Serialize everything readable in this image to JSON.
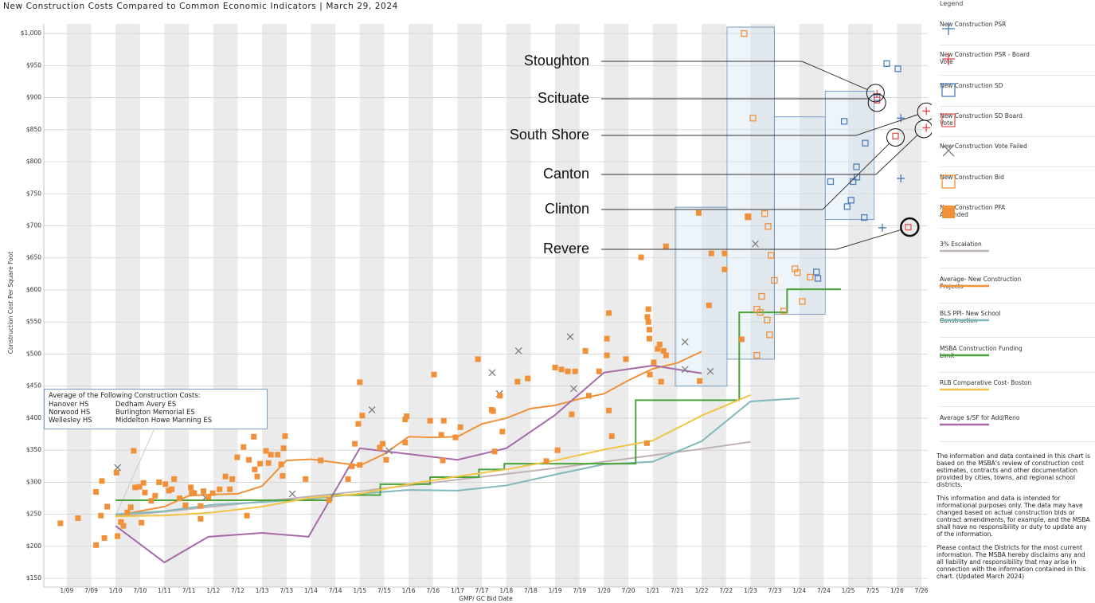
{
  "chart_data": {
    "type": "scatter",
    "title": "New Construction Costs Compared to Common Economic Indicators | March 29, 2024",
    "x_label": "GMP/ GC Bid Date",
    "y_label": "Construction Cost Per Square Foot",
    "xlim": [
      2008.53,
      2026.63
    ],
    "ylim": [
      136.5,
      1015
    ],
    "xticks": [
      {
        "value": 2009,
        "label": "1/09"
      },
      {
        "value": 2009.5,
        "label": "7/09"
      },
      {
        "value": 2010,
        "label": "1/10"
      },
      {
        "value": 2010.5,
        "label": "7/10"
      },
      {
        "value": 2011,
        "label": "1/11"
      },
      {
        "value": 2011.5,
        "label": "7/11"
      },
      {
        "value": 2012,
        "label": "1/12"
      },
      {
        "value": 2012.5,
        "label": "7/12"
      },
      {
        "value": 2013,
        "label": "1/13"
      },
      {
        "value": 2013.5,
        "label": "7/13"
      },
      {
        "value": 2014,
        "label": "1/14"
      },
      {
        "value": 2014.5,
        "label": "7/14"
      },
      {
        "value": 2015,
        "label": "1/15"
      },
      {
        "value": 2015.5,
        "label": "7/15"
      },
      {
        "value": 2016,
        "label": "1/16"
      },
      {
        "value": 2016.5,
        "label": "7/16"
      },
      {
        "value": 2017,
        "label": "1/17"
      },
      {
        "value": 2017.5,
        "label": "7/17"
      },
      {
        "value": 2018,
        "label": "1/18"
      },
      {
        "value": 2018.5,
        "label": "7/18"
      },
      {
        "value": 2019,
        "label": "1/19"
      },
      {
        "value": 2019.5,
        "label": "7/19"
      },
      {
        "value": 2020,
        "label": "1/20"
      },
      {
        "value": 2020.5,
        "label": "7/20"
      },
      {
        "value": 2021,
        "label": "1/21"
      },
      {
        "value": 2021.5,
        "label": "7/21"
      },
      {
        "value": 2022,
        "label": "1/22"
      },
      {
        "value": 2022.5,
        "label": "7/22"
      },
      {
        "value": 2023,
        "label": "1/23"
      },
      {
        "value": 2023.5,
        "label": "7/23"
      },
      {
        "value": 2024,
        "label": "1/24"
      },
      {
        "value": 2024.5,
        "label": "7/24"
      },
      {
        "value": 2025,
        "label": "1/25"
      },
      {
        "value": 2025.5,
        "label": "7/25"
      },
      {
        "value": 2026,
        "label": "1/26"
      },
      {
        "value": 2026.5,
        "label": "7/26"
      }
    ],
    "yticks": [
      {
        "value": 150,
        "label": "$150"
      },
      {
        "value": 200,
        "label": "$200"
      },
      {
        "value": 250,
        "label": "$250"
      },
      {
        "value": 300,
        "label": "$300"
      },
      {
        "value": 350,
        "label": "$350"
      },
      {
        "value": 400,
        "label": "$400"
      },
      {
        "value": 450,
        "label": "$450"
      },
      {
        "value": 500,
        "label": "$500"
      },
      {
        "value": 550,
        "label": "$550"
      },
      {
        "value": 600,
        "label": "$600"
      },
      {
        "value": 650,
        "label": "$650"
      },
      {
        "value": 700,
        "label": "$700"
      },
      {
        "value": 750,
        "label": "$750"
      },
      {
        "value": 800,
        "label": "$800"
      },
      {
        "value": 850,
        "label": "$850"
      },
      {
        "value": 900,
        "label": "$900"
      },
      {
        "value": 950,
        "label": "$950"
      },
      {
        "value": 1000,
        "label": "$1,000"
      }
    ],
    "grid": true,
    "legend_title": "Legend",
    "series": [
      {
        "name": "New Construction PSR",
        "marker": "plus",
        "color": "#3f78b5",
        "x": [
          2026.08,
          2026.08,
          2025.7
        ],
        "values": [
          868,
          774,
          697
        ]
      },
      {
        "name": "New Construction PSR - Board Vote",
        "marker": "plus",
        "color": "#e8434a",
        "x": [
          2025.59,
          2026.6,
          2026.6
        ],
        "values": [
          906,
          879,
          853
        ]
      },
      {
        "name": "New Construction SD",
        "marker": "square",
        "color": "#4f7fb8",
        "x": [
          2025.79,
          2026.02,
          2025.59,
          2024.92,
          2025.35,
          2025.17,
          2025.18,
          2025.1,
          2024.64,
          2025.06,
          2024.98,
          2025.33,
          2024.35,
          2024.38
        ],
        "values": [
          953,
          945,
          900,
          863,
          829,
          792,
          776,
          769,
          769,
          740,
          730,
          713,
          628,
          618
        ]
      },
      {
        "name": "New Construction SD Board Vote",
        "marker": "square",
        "color": "#e05a5f",
        "x": [
          2025.59,
          2025.97,
          2026.23
        ],
        "values": [
          896,
          840,
          698
        ]
      },
      {
        "name": "New Construction Vote Failed",
        "marker": "cross",
        "color": "#7d7d7d",
        "x": [
          2010.04,
          2011.84,
          2013.62,
          2015.25,
          2015.6,
          2017.71,
          2017.86,
          2018.25,
          2019.31,
          2019.38,
          2021.66,
          2021.66,
          2022.18,
          2023.1
        ],
        "values": [
          323,
          276,
          282,
          413,
          349,
          471,
          438,
          505,
          527,
          446,
          519,
          476,
          473,
          672
        ]
      },
      {
        "name": "New Construction Bid",
        "marker": "square",
        "color": "#f0913a",
        "x": [
          2022.87,
          2023.05,
          2022.95,
          2023.29,
          2023.36,
          2023.42,
          2023.49,
          2023.23,
          2023.2,
          2023.13,
          2023.34,
          2023.39,
          2023.13,
          2023.68,
          2023.91,
          2023.96,
          2024.22,
          2024.06
        ],
        "values": [
          1000,
          868,
          714,
          719,
          699,
          654,
          615,
          590,
          565,
          570,
          553,
          530,
          498,
          567,
          633,
          627,
          620,
          582
        ]
      },
      {
        "name": "New Construction PFA Amended",
        "marker": "filled-square",
        "color": "#f0913a",
        "x": [
          2008.87,
          2009.23,
          2009.6,
          2009.6,
          2009.72,
          2009.7,
          2009.77,
          2009.83,
          2010.04,
          2010.02,
          2010.11,
          2010.16,
          2010.24,
          2010.31,
          2010.37,
          2010.4,
          2010.49,
          2010.53,
          2010.57,
          2010.6,
          2010.73,
          2010.81,
          2010.89,
          2011.02,
          2011.09,
          2011.15,
          2011.2,
          2011.31,
          2011.43,
          2011.54,
          2011.56,
          2011.61,
          2011.74,
          2011.74,
          2011.8,
          2011.9,
          2011.99,
          2012.13,
          2012.25,
          2012.34,
          2012.39,
          2012.49,
          2012.62,
          2012.73,
          2012.83,
          2012.85,
          2012.9,
          2012.96,
          2013.08,
          2013.13,
          2013.18,
          2013.32,
          2013.39,
          2013.42,
          2013.44,
          2013.47,
          2012.69,
          2013.89,
          2014.2,
          2014.37,
          2014.76,
          2014.84,
          2014.9,
          2014.97,
          2015.05,
          2015.0,
          2015.0,
          2015.41,
          2015.47,
          2015.54,
          2015.93,
          2015.93,
          2015.96,
          2016.52,
          2016.44,
          2016.72,
          2016.67,
          2016.7,
          2016.96,
          2017.06,
          2017.42,
          2017.7,
          2017.73,
          2017.76,
          2017.87,
          2017.92,
          2018.23,
          2018.44,
          2018.82,
          2019.0,
          2019.05,
          2019.13,
          2019.26,
          2019.34,
          2019.41,
          2019.62,
          2019.69,
          2019.9,
          2020.06,
          2020.06,
          2020.1,
          2020.1,
          2020.16,
          2020.45,
          2020.76,
          2020.94,
          2020.88,
          2020.89,
          2020.91,
          2020.91,
          2020.93,
          2020.93,
          2021.02,
          2021.1,
          2021.17,
          2021.22,
          2021.27,
          2021.14,
          2021.27,
          2021.94,
          2021.96,
          2022.15,
          2022.2,
          2022.47,
          2022.47,
          2022.82,
          2022.96
        ],
        "values": [
          236,
          244,
          202,
          285,
          302,
          248,
          213,
          262,
          216,
          315,
          238,
          232,
          253,
          261,
          349,
          292,
          293,
          237,
          299,
          284,
          271,
          279,
          300,
          297,
          287,
          289,
          305,
          275,
          264,
          292,
          284,
          283,
          263,
          243,
          286,
          277,
          283,
          289,
          309,
          289,
          305,
          339,
          355,
          335,
          371,
          320,
          309,
          329,
          349,
          330,
          343,
          343,
          328,
          310,
          353,
          372,
          248,
          305,
          334,
          272,
          305,
          325,
          360,
          391,
          404,
          456,
          327,
          354,
          360,
          335,
          362,
          398,
          403,
          468,
          396,
          396,
          374,
          334,
          370,
          386,
          492,
          413,
          411,
          348,
          435,
          379,
          457,
          462,
          333,
          479,
          350,
          476,
          473,
          406,
          473,
          505,
          435,
          473,
          498,
          524,
          564,
          412,
          372,
          492,
          651,
          468,
          361,
          558,
          570,
          550,
          538,
          524,
          487,
          508,
          457,
          505,
          498,
          515,
          668,
          720,
          458,
          576,
          657,
          632,
          657,
          523,
          715
        ]
      },
      {
        "name": "3% Escalation",
        "marker": "line",
        "color": "#bfb3b1",
        "x": [
          2010,
          2011,
          2012,
          2013,
          2014,
          2015,
          2016,
          2017,
          2018,
          2019,
          2020,
          2021,
          2022,
          2023
        ],
        "values": [
          247,
          254,
          262,
          270,
          278,
          286,
          295,
          304,
          313,
          322,
          332,
          342,
          352,
          363
        ]
      },
      {
        "name": "Average- New Construction Projects",
        "marker": "line",
        "color": "#f0913a",
        "x": [
          2010,
          2011,
          2011.5,
          2012,
          2012.5,
          2013,
          2013.5,
          2014,
          2014.5,
          2015,
          2015.5,
          2016,
          2016.5,
          2017,
          2017.5,
          2018,
          2018.5,
          2019,
          2019.5,
          2020,
          2020.5,
          2021,
          2021.5,
          2022
        ],
        "values": [
          248,
          262,
          279,
          281,
          282,
          294,
          334,
          336,
          331,
          326,
          344,
          371,
          370,
          371,
          391,
          400,
          415,
          420,
          430,
          438,
          459,
          477,
          486,
          504
        ]
      },
      {
        "name": "BLS PPI- New School Construction",
        "marker": "line",
        "color": "#7fb9bc",
        "x": [
          2010,
          2011,
          2012,
          2013,
          2014,
          2015,
          2016,
          2017,
          2018,
          2019,
          2020,
          2021,
          2022,
          2023,
          2024
        ],
        "values": [
          250,
          255,
          265,
          269,
          274,
          282,
          288,
          287,
          295,
          312,
          328,
          332,
          364,
          426,
          431
        ]
      },
      {
        "name": "MSBA Construction Funding Limit",
        "marker": "line",
        "color": "#4aa23a",
        "x": [
          2010,
          2014.42,
          2014.42,
          2015.42,
          2015.42,
          2016.44,
          2016.44,
          2017.44,
          2017.44,
          2017.96,
          2017.96,
          2020.65,
          2020.65,
          2022.77,
          2022.77,
          2023.75,
          2023.75,
          2024.85
        ],
        "values": [
          272,
          272,
          280,
          280,
          297,
          297,
          308,
          308,
          320,
          320,
          329,
          329,
          428,
          428,
          565,
          565,
          601,
          601
        ]
      },
      {
        "name": "RLB Comparative Cost- Boston",
        "marker": "line",
        "color": "#f3c443",
        "x": [
          2010,
          2011,
          2012,
          2013,
          2014,
          2015,
          2016,
          2017,
          2018,
          2019,
          2020,
          2021,
          2022,
          2023
        ],
        "values": [
          247,
          248,
          253,
          262,
          276,
          282,
          297,
          309,
          320,
          334,
          351,
          365,
          404,
          436
        ]
      },
      {
        "name": "Average $/SF for Add/Reno",
        "marker": "line",
        "color": "#a76aa9",
        "x": [
          2010,
          2011,
          2011.9,
          2013,
          2013.95,
          2015,
          2016,
          2017,
          2018,
          2019,
          2020,
          2021,
          2022
        ],
        "values": [
          232,
          175,
          215,
          221,
          215,
          353,
          344,
          335,
          353,
          405,
          471,
          482,
          470
        ]
      }
    ],
    "highlight_boxes": [
      {
        "x0": 2021.46,
        "x1": 2022.52,
        "y0": 450,
        "y1": 729
      },
      {
        "x0": 2022.52,
        "x1": 2023.49,
        "y0": 492,
        "y1": 1010
      },
      {
        "x0": 2023.49,
        "x1": 2024.53,
        "y0": 562,
        "y1": 870
      },
      {
        "x0": 2024.53,
        "x1": 2025.53,
        "y0": 710,
        "y1": 910
      }
    ],
    "annotations": [
      {
        "label": "Stoughton",
        "x": 2025.56,
        "y": 907
      },
      {
        "label": "Scituate",
        "x": 2025.59,
        "y": 892
      },
      {
        "label": "South Shore",
        "x": 2026.6,
        "y": 878
      },
      {
        "label": "Canton",
        "x": 2026.55,
        "y": 851
      },
      {
        "label": "Clinton",
        "x": 2025.97,
        "y": 838
      },
      {
        "label": "Revere",
        "x": 2026.26,
        "y": 698
      }
    ],
    "callout": {
      "title": "Average of the Following Construction Costs:",
      "items": [
        "Hanover HS",
        "Dedham Avery ES",
        "Norwood HS",
        "Burlington Memorial ES",
        "Wellesley HS",
        "Middelton Howe Manning ES"
      ]
    },
    "notes": [
      "The information and data contained in this chart is based on the MSBA's review of construction cost estimates, contracts and other documentation provided by cities, towns, and regional school districts.",
      "This information and data is intended for informational purposes only. The data may have changed based on actual construction bids or contract amendments, for example, and the MSBA shall have no responsibility or duty to update any of the information.",
      "Please contact the Districts for the most current information. The MSBA hereby disclaims any and all liability and responsibility that may arise in connection with the information contained in this chart. (Updated March 2024)"
    ]
  }
}
